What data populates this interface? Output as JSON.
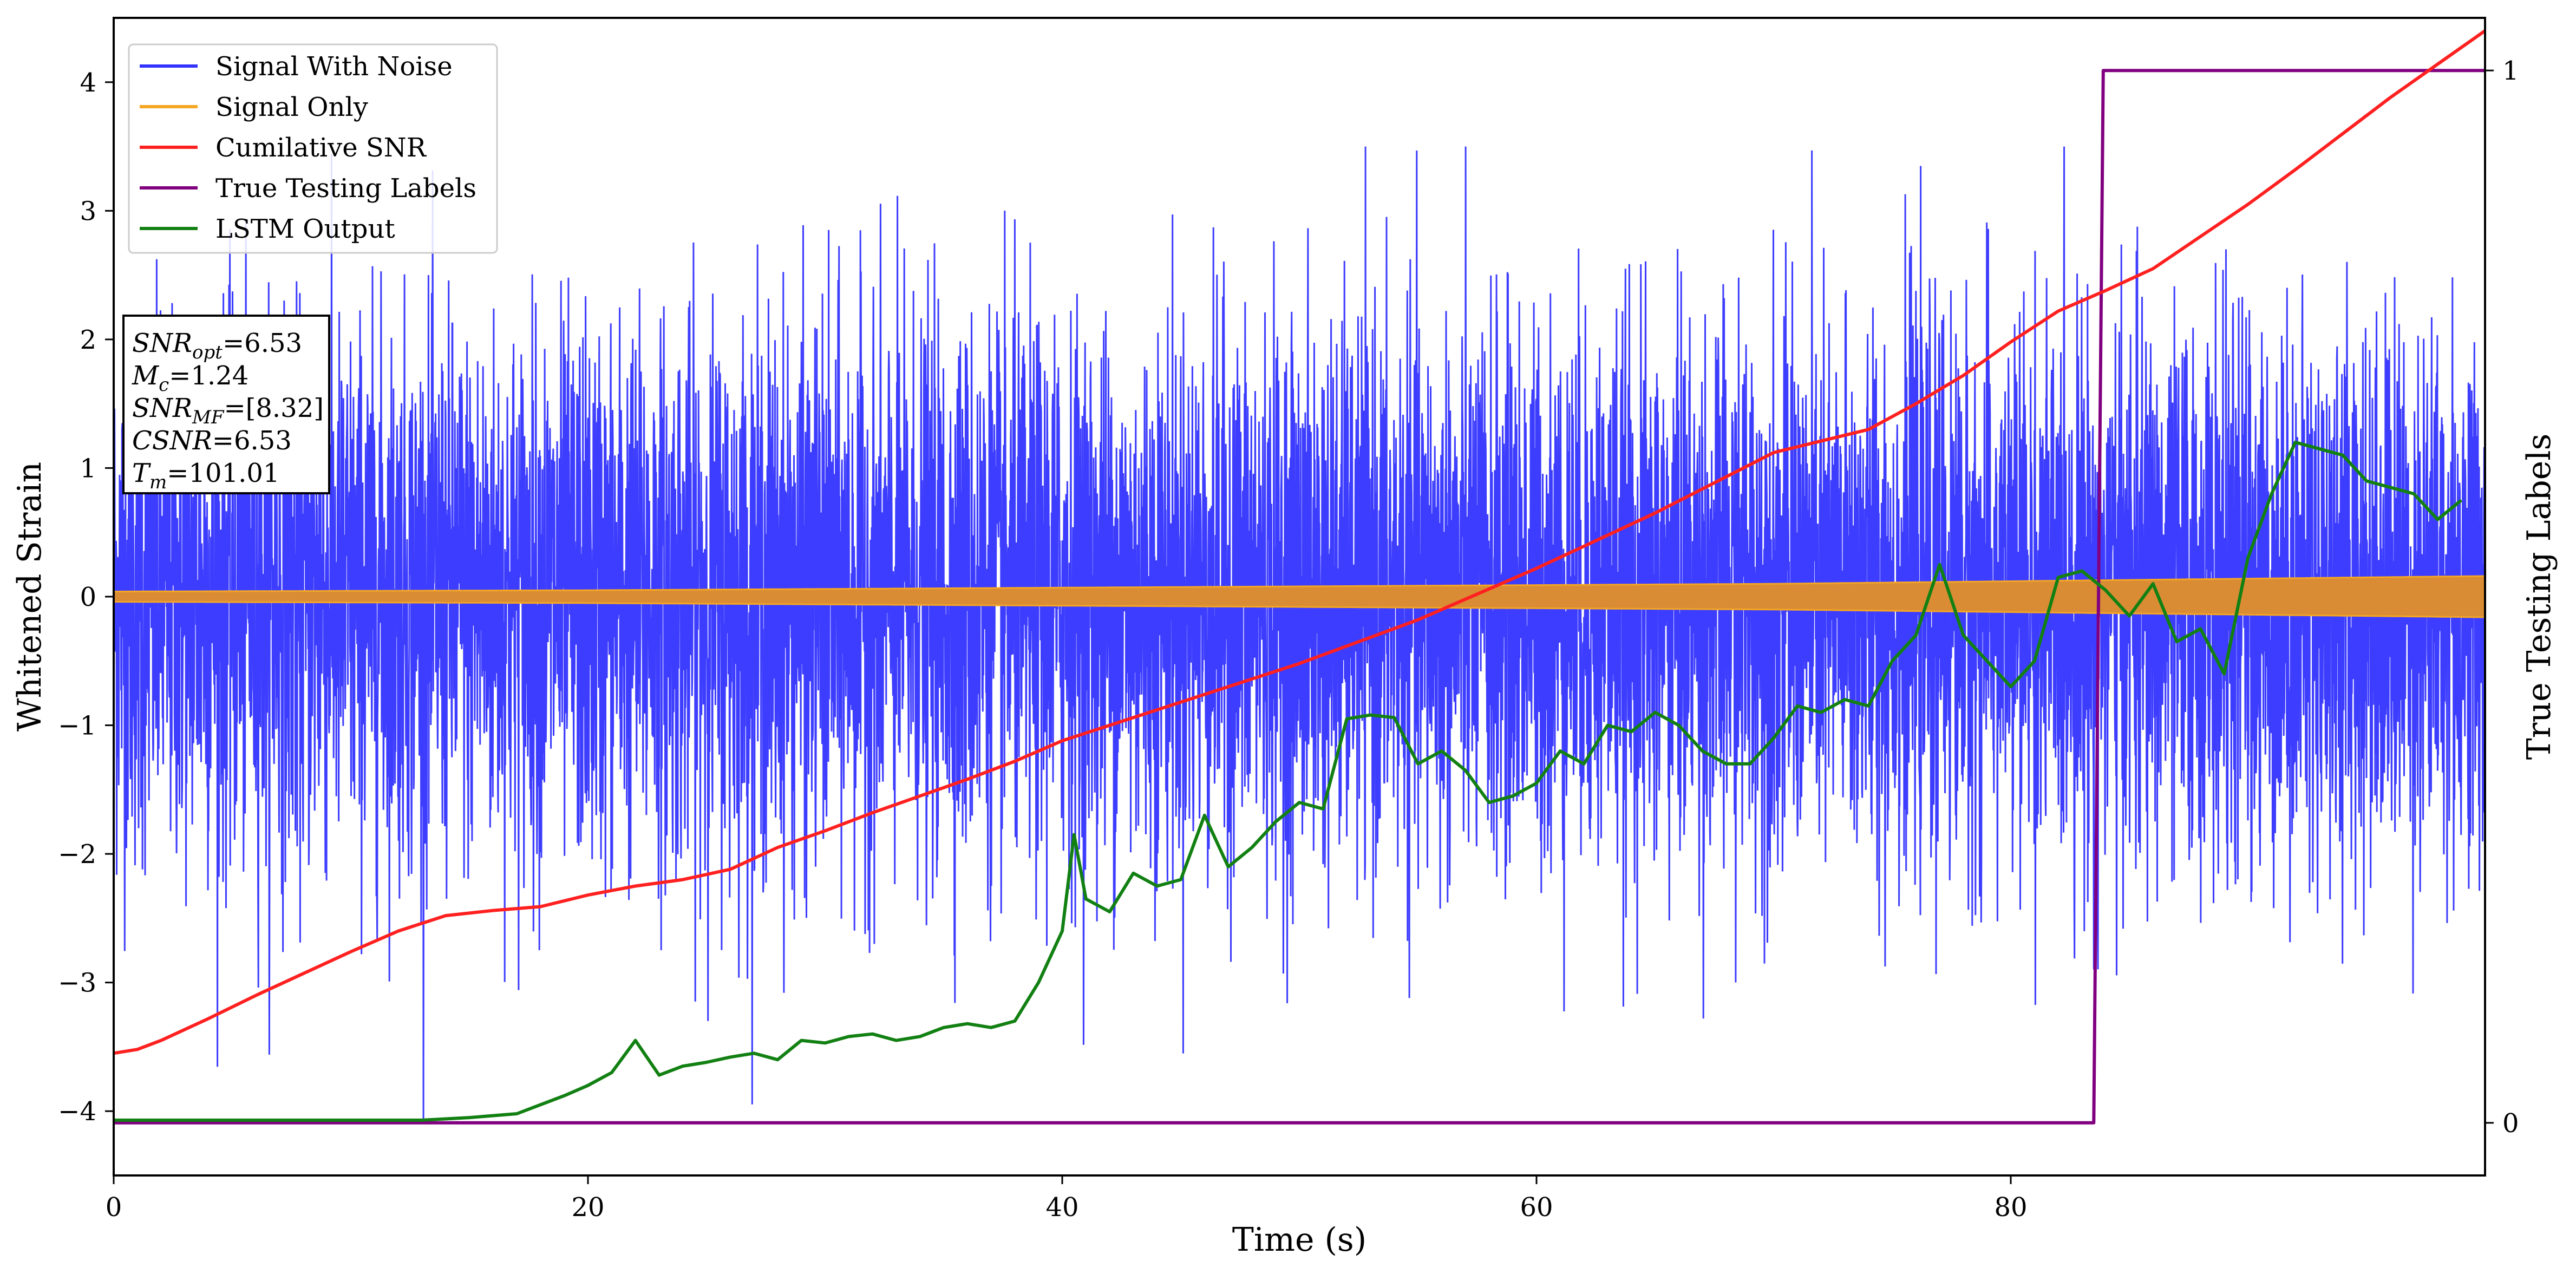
{
  "chart_data": {
    "type": "line",
    "xlabel": "Time (s)",
    "ylabel": "Whitened Strain",
    "y2label": "True Testing Labels",
    "xlim": [
      0,
      100
    ],
    "ylim": [
      -4.5,
      4.5
    ],
    "y2lim": [
      -0.05,
      1.05
    ],
    "x_ticks": [
      0,
      20,
      40,
      60,
      80
    ],
    "y_ticks": [
      -4,
      -3,
      -2,
      -1,
      0,
      1,
      2,
      3,
      4
    ],
    "y2_ticks": [
      0,
      1
    ],
    "grid": false,
    "legend_position": "top-left",
    "legend": [
      {
        "label": "Signal With Noise",
        "color": "#3333ff"
      },
      {
        "label": "Signal Only",
        "color": "#f5a623"
      },
      {
        "label": "Cumilative SNR",
        "color": "#ff2020"
      },
      {
        "label": "True Testing Labels",
        "color": "#800080"
      },
      {
        "label": "LSTM Output",
        "color": "#128012"
      }
    ],
    "annotation_lines": [
      {
        "main": "SNR",
        "sub": "opt",
        "value": "=6.53"
      },
      {
        "main": "M",
        "sub": "c",
        "value": "=1.24"
      },
      {
        "main": "SNR",
        "sub": "MF",
        "value": "=[8.32]"
      },
      {
        "main": "CSNR",
        "sub": "",
        "value": "=6.53"
      },
      {
        "main": "T",
        "sub": "m",
        "value": "=101.01"
      }
    ],
    "series": [
      {
        "name": "Signal With Noise",
        "axis": "left",
        "color": "#3333ff",
        "style": "dense noise, amplitude roughly within -4.1 to 3.5",
        "approx_envelope_abs": 2.0
      },
      {
        "name": "Signal Only",
        "axis": "left",
        "color": "#f5a623",
        "envelope_x": [
          0,
          10,
          20,
          30,
          40,
          50,
          60,
          70,
          80,
          90,
          100
        ],
        "envelope_amp": [
          0.04,
          0.045,
          0.05,
          0.06,
          0.07,
          0.08,
          0.09,
          0.1,
          0.12,
          0.14,
          0.16
        ]
      },
      {
        "name": "Cumilative SNR",
        "axis": "left",
        "color": "#ff2020",
        "x": [
          0,
          1,
          2,
          4,
          6,
          8,
          10,
          12,
          14,
          16,
          18,
          20,
          22,
          24,
          26,
          28,
          30,
          32,
          34,
          36,
          38,
          40,
          45,
          50,
          55,
          60,
          65,
          70,
          74,
          76,
          78,
          80,
          82,
          84,
          86,
          88,
          90,
          92,
          94,
          96,
          98,
          100
        ],
        "y": [
          -3.55,
          -3.52,
          -3.45,
          -3.28,
          -3.1,
          -2.93,
          -2.76,
          -2.6,
          -2.48,
          -2.44,
          -2.41,
          -2.32,
          -2.25,
          -2.2,
          -2.12,
          -1.95,
          -1.82,
          -1.68,
          -1.55,
          -1.42,
          -1.28,
          -1.12,
          -0.82,
          -0.52,
          -0.18,
          0.22,
          0.65,
          1.12,
          1.3,
          1.5,
          1.72,
          1.98,
          2.22,
          2.38,
          2.55,
          2.8,
          3.05,
          3.32,
          3.6,
          3.88,
          4.14,
          4.4
        ]
      },
      {
        "name": "True Testing Labels",
        "axis": "right",
        "color": "#800080",
        "x": [
          0,
          83.5,
          83.9,
          100
        ],
        "y": [
          0,
          0,
          1,
          1
        ]
      },
      {
        "name": "LSTM Output",
        "axis": "left",
        "color": "#128012",
        "x": [
          0,
          13,
          15,
          17,
          18,
          19,
          20,
          21,
          22,
          23,
          24,
          25,
          26,
          27,
          28,
          29,
          30,
          31,
          32,
          33,
          34,
          35,
          36,
          37,
          38,
          39,
          40,
          40.5,
          41,
          42,
          43,
          44,
          45,
          46,
          47,
          48,
          49,
          50,
          51,
          52,
          53,
          54,
          55,
          56,
          57,
          58,
          59,
          60,
          61,
          62,
          63,
          64,
          65,
          66,
          67,
          68,
          69,
          70,
          71,
          72,
          73,
          74,
          75,
          76,
          77,
          78,
          79,
          80,
          81,
          82,
          83,
          84,
          85,
          86,
          87,
          88,
          89,
          90,
          91,
          92,
          93,
          94,
          95,
          96,
          97,
          98,
          99
        ],
        "y": [
          -4.07,
          -4.07,
          -4.05,
          -4.02,
          -3.95,
          -3.88,
          -3.8,
          -3.7,
          -3.45,
          -3.72,
          -3.65,
          -3.62,
          -3.58,
          -3.55,
          -3.6,
          -3.45,
          -3.47,
          -3.42,
          -3.4,
          -3.45,
          -3.42,
          -3.35,
          -3.32,
          -3.35,
          -3.3,
          -3.0,
          -2.6,
          -1.85,
          -2.35,
          -2.45,
          -2.15,
          -2.25,
          -2.2,
          -1.7,
          -2.1,
          -1.95,
          -1.75,
          -1.6,
          -1.65,
          -0.95,
          -0.92,
          -0.94,
          -1.3,
          -1.2,
          -1.35,
          -1.6,
          -1.55,
          -1.45,
          -1.2,
          -1.3,
          -1.0,
          -1.05,
          -0.9,
          -1.0,
          -1.2,
          -1.3,
          -1.3,
          -1.1,
          -0.85,
          -0.9,
          -0.8,
          -0.85,
          -0.5,
          -0.3,
          0.25,
          -0.3,
          -0.5,
          -0.7,
          -0.5,
          0.15,
          0.2,
          0.05,
          -0.15,
          0.1,
          -0.35,
          -0.25,
          -0.6,
          0.3,
          0.8,
          1.2,
          1.15,
          1.1,
          0.9,
          0.85,
          0.8,
          0.6,
          0.75
        ]
      }
    ]
  }
}
